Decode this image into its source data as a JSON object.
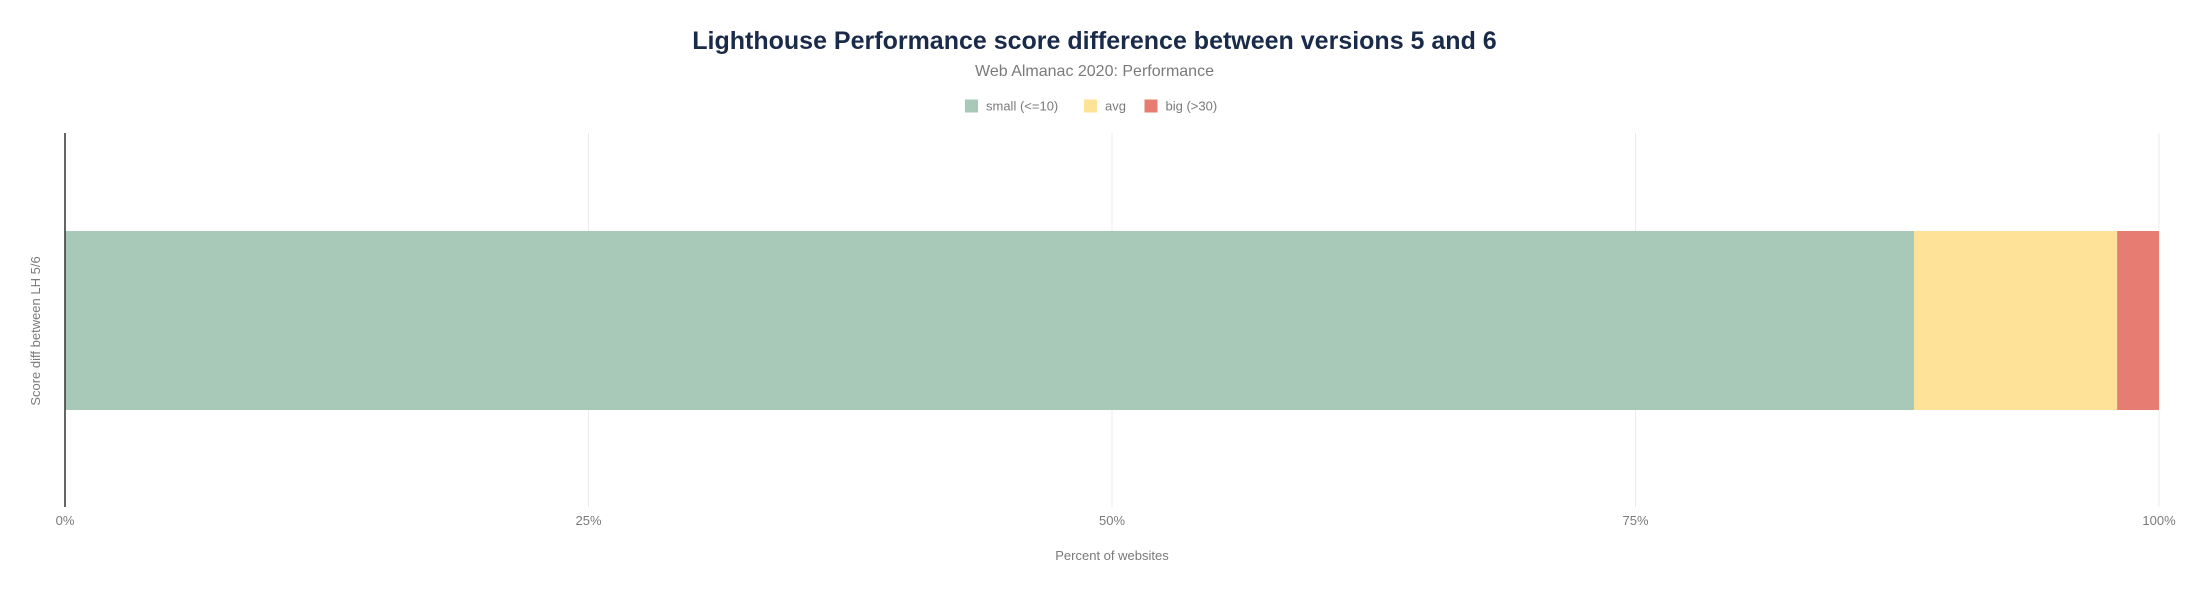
{
  "chart_data": {
    "type": "bar",
    "orientation": "horizontal",
    "stacked": true,
    "title": "Lighthouse Performance score difference between versions 5 and 6",
    "subtitle": "Web Almanac 2020: Performance",
    "xlabel": "Percent of websites",
    "ylabel": "Score diff between LH 5/6",
    "xlim": [
      0,
      100
    ],
    "x_ticks": [
      "0%",
      "25%",
      "50%",
      "75%",
      "100%"
    ],
    "grid": true,
    "legend_position": "top-center",
    "categories": [
      "Score diff between LH 5/6"
    ],
    "series": [
      {
        "name": "small (<=10)",
        "color": "#a8c9b8",
        "values": [
          88.3
        ]
      },
      {
        "name": "avg",
        "color": "#fde298",
        "values": [
          9.7
        ]
      },
      {
        "name": "big (>30)",
        "color": "#e77c72",
        "values": [
          2.0
        ]
      }
    ]
  }
}
